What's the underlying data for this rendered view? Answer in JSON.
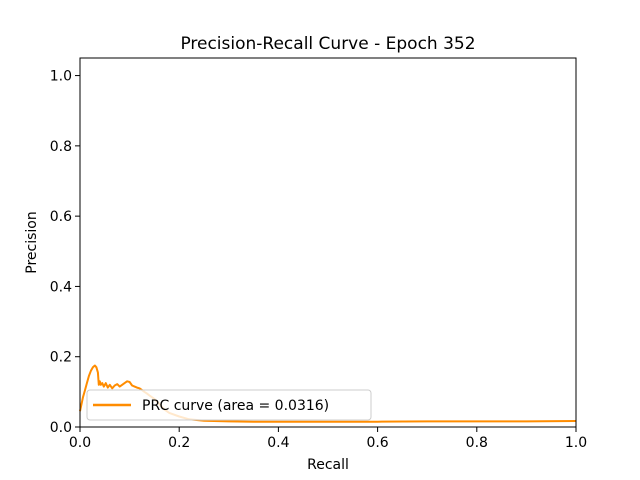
{
  "chart_data": {
    "type": "line",
    "title": "Precision-Recall Curve - Epoch 352",
    "xlabel": "Recall",
    "ylabel": "Precision",
    "xlim": [
      0.0,
      1.0
    ],
    "ylim": [
      0.0,
      1.05
    ],
    "xticks": [
      "0.0",
      "0.2",
      "0.4",
      "0.6",
      "0.8",
      "1.0"
    ],
    "yticks": [
      "0.0",
      "0.2",
      "0.4",
      "0.6",
      "0.8",
      "1.0"
    ],
    "grid": false,
    "legend_position": "lower-left",
    "series": [
      {
        "name": "PRC curve (area = 0.0316)",
        "color": "#ff8c00",
        "x": [
          0.0,
          0.003,
          0.006,
          0.01,
          0.014,
          0.018,
          0.022,
          0.026,
          0.03,
          0.033,
          0.036,
          0.038,
          0.04,
          0.042,
          0.045,
          0.048,
          0.052,
          0.056,
          0.06,
          0.065,
          0.07,
          0.075,
          0.08,
          0.085,
          0.09,
          0.095,
          0.1,
          0.105,
          0.11,
          0.115,
          0.12,
          0.125,
          0.13,
          0.135,
          0.14,
          0.15,
          0.16,
          0.17,
          0.18,
          0.2,
          0.22,
          0.25,
          0.3,
          0.35,
          0.4,
          0.5,
          0.6,
          0.7,
          0.8,
          0.9,
          1.0
        ],
        "y": [
          0.045,
          0.065,
          0.085,
          0.105,
          0.125,
          0.145,
          0.16,
          0.17,
          0.175,
          0.17,
          0.155,
          0.12,
          0.13,
          0.12,
          0.125,
          0.115,
          0.125,
          0.112,
          0.12,
          0.11,
          0.118,
          0.122,
          0.115,
          0.12,
          0.125,
          0.13,
          0.128,
          0.118,
          0.115,
          0.112,
          0.11,
          0.105,
          0.1,
          0.095,
          0.09,
          0.08,
          0.065,
          0.05,
          0.04,
          0.03,
          0.022,
          0.018,
          0.016,
          0.015,
          0.015,
          0.015,
          0.015,
          0.016,
          0.016,
          0.016,
          0.017
        ]
      }
    ]
  }
}
